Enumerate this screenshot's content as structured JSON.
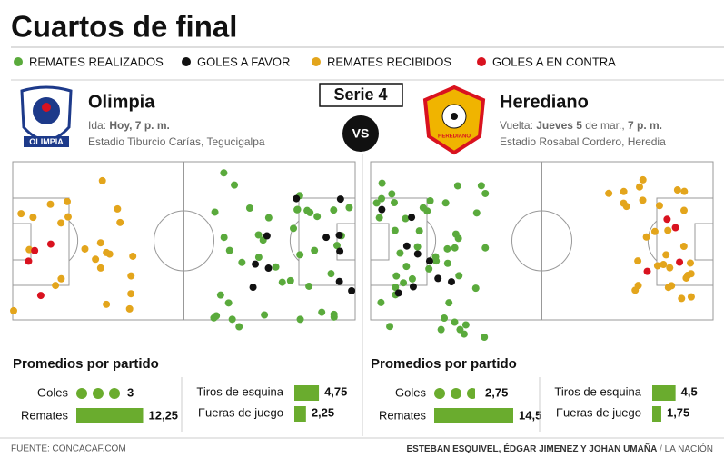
{
  "title": "Cuartos de final",
  "legend": [
    {
      "label": "REMATES REALIZADOS",
      "color": "#5aaa3c"
    },
    {
      "label": "GOLES A FAVOR",
      "color": "#111111"
    },
    {
      "label": "REMATES RECIBIDOS",
      "color": "#e3a51c"
    },
    {
      "label": "GOLES A EN CONTRA",
      "color": "#d9121f"
    }
  ],
  "series_label": "Serie 4",
  "vs": "VS",
  "teams": [
    {
      "name": "Olimpia",
      "logo_text": "OLIMPIA",
      "match": [
        {
          "text": "Ida: ",
          "bold": false
        },
        {
          "text": "Hoy, 7 p. m.",
          "bold": true
        }
      ],
      "stadium": "Estadio Tiburcio Carías, Tegucigalpa",
      "stats_title": "Promedios por partido",
      "stats": {
        "goals": {
          "label": "Goles",
          "value": 3,
          "value_label": "3"
        },
        "shots": {
          "label": "Remates",
          "value": 12.25,
          "value_label": "12,25"
        },
        "corners": {
          "label": "Tiros de esquina",
          "value": 4.75,
          "value_label": "4,75"
        },
        "offsides": {
          "label": "Fueras de juego",
          "value": 2.25,
          "value_label": "2,25"
        }
      }
    },
    {
      "name": "Herediano",
      "logo_text": "HEREDIANO",
      "match": [
        {
          "text": "Vuelta: ",
          "bold": false
        },
        {
          "text": "Jueves 5",
          "bold": true
        },
        {
          "text": " de mar., ",
          "bold": false
        },
        {
          "text": "7 p. m.",
          "bold": true
        }
      ],
      "stadium": "Estadio Rosabal Cordero, Heredia",
      "stats_title": "Promedios por partido",
      "stats": {
        "goals": {
          "label": "Goles",
          "value": 2.75,
          "value_label": "2,75"
        },
        "shots": {
          "label": "Remates",
          "value": 14.5,
          "value_label": "14,5"
        },
        "corners": {
          "label": "Tiros de esquina",
          "value": 4.5,
          "value_label": "4,5"
        },
        "offsides": {
          "label": "Fueras de juego",
          "value": 1.75,
          "value_label": "1,75"
        }
      }
    }
  ],
  "footer": {
    "source": "FUENTE: CONCACAF.COM",
    "credit": "ESTEBAN ESQUIVEL, ÉDGAR JIMENEZ Y JOHAN UMAÑA",
    "separator": "/",
    "outlet": "LA NACIÓN"
  }
}
